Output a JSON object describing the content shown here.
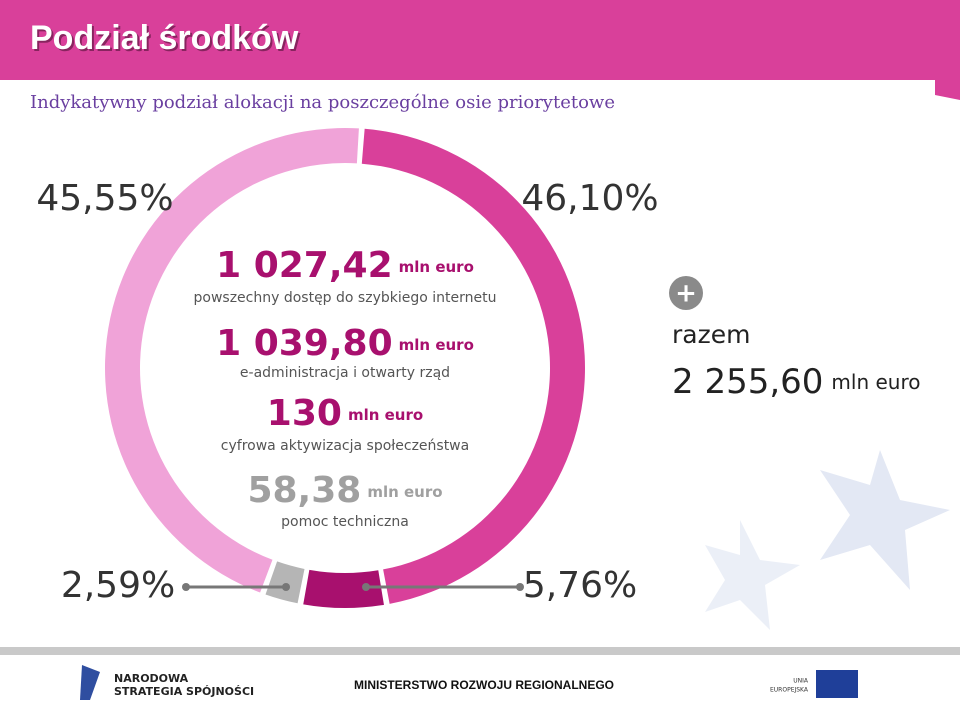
{
  "chart_data": {
    "type": "donut",
    "title": "Podział środków",
    "subtitle": "Indykatywny podział alokacji na poszczególne osie priorytetowe",
    "categories": [
      "powszechny dostęp do szybkiego internetu",
      "e-administracja i otwarty rząd",
      "cyfrowa aktywizacja społeczeństwa",
      "pomoc techniczna"
    ],
    "values": [
      45.55,
      46.1,
      5.76,
      2.59
    ],
    "value_labels": [
      "45,55%",
      "46,10%",
      "5,76%",
      "2,59%"
    ],
    "amounts": [
      1027.42,
      1039.8,
      130,
      58.38
    ],
    "amount_labels": [
      "1 027,42",
      "1 039,80",
      "130",
      "58,38"
    ],
    "unit": "mln euro",
    "colors": [
      "#f0a3d8",
      "#d9409a",
      "#a8106e",
      "#b5b5b5"
    ],
    "plus": "+",
    "total_label": "razem",
    "total": 2255.6,
    "total_value_label": "2 255,60"
  },
  "footer": {
    "left": [
      "NARODOWA",
      "STRATEGIA SPÓJNOŚCI"
    ],
    "center": "MINISTERSTWO ROZWOJU REGIONALNEGO",
    "right": [
      "UNIA",
      "EUROPEJSKA"
    ]
  }
}
